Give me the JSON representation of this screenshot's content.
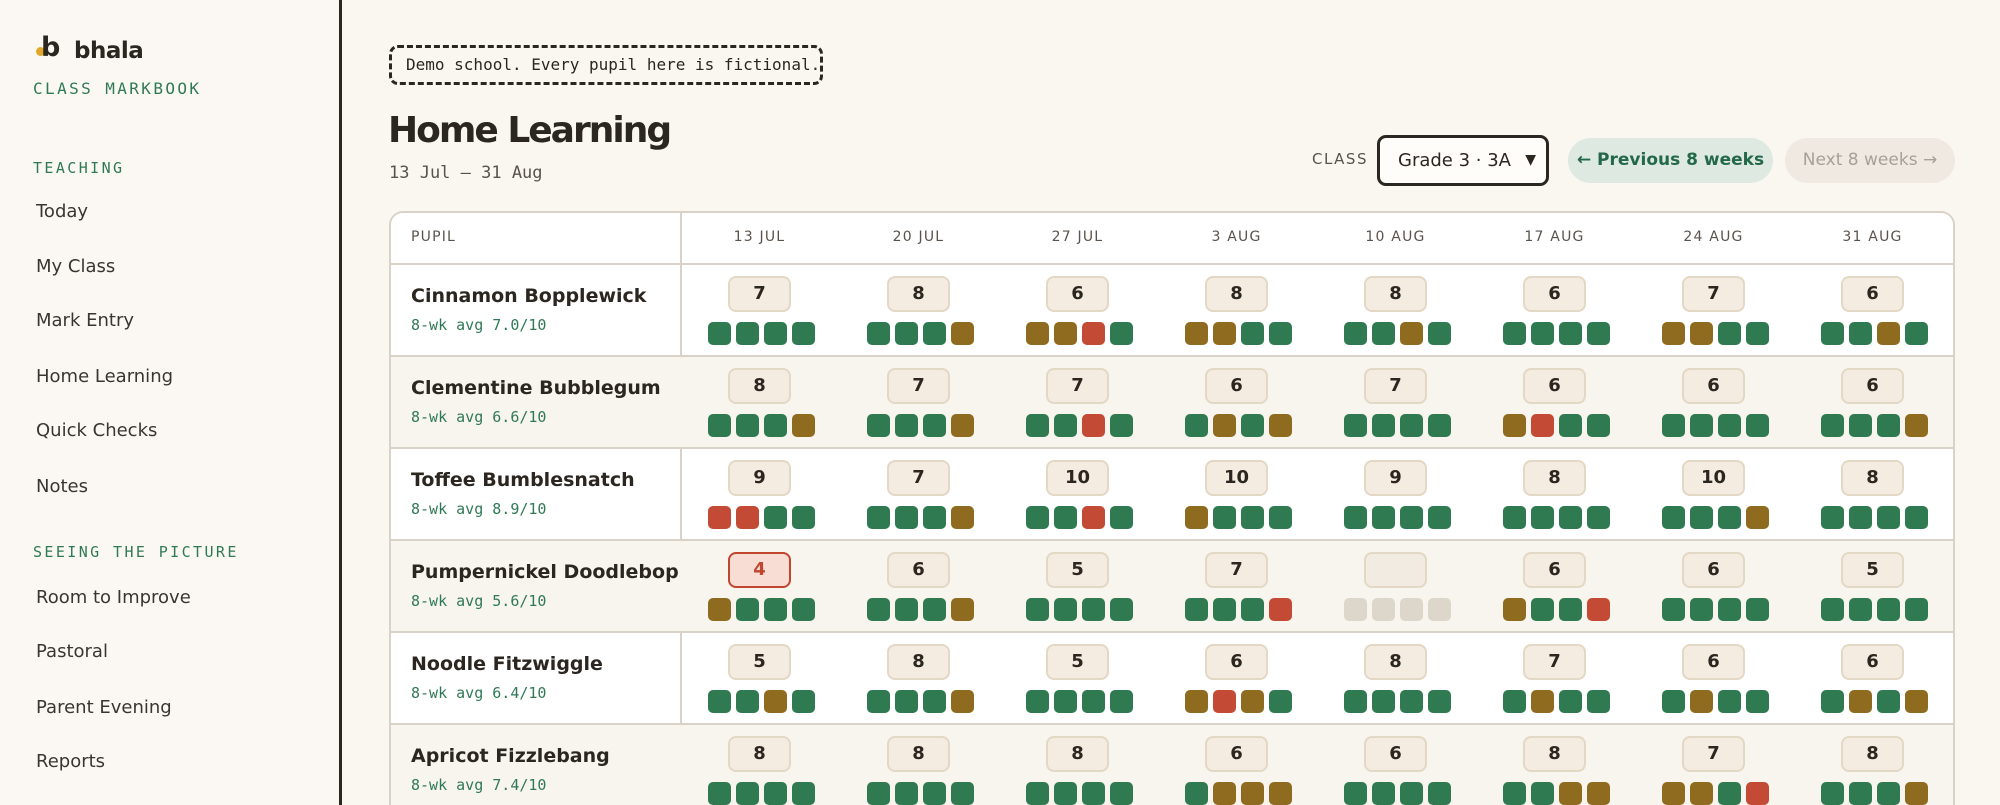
{
  "brand": {
    "name": "bhala",
    "logo_letter": "b",
    "subtitle": "CLASS MARKBOOK"
  },
  "nav": {
    "sections": [
      {
        "heading": "TEACHING",
        "items": [
          "Today",
          "My Class",
          "Mark Entry",
          "Home Learning",
          "Quick Checks",
          "Notes"
        ]
      },
      {
        "heading": "SEEING THE PICTURE",
        "items": [
          "Room to Improve",
          "Pastoral",
          "Parent Evening",
          "Reports"
        ]
      }
    ]
  },
  "page": {
    "demo_notice": "Demo school. Every pupil here is fictional.",
    "title": "Home Learning",
    "date_range": "13 Jul – 31 Aug"
  },
  "controls": {
    "class_label": "CLASS",
    "class_value": "Grade 3 · 3A",
    "prev_label": "← Previous 8 weeks",
    "next_label": "Next 8 weeks →"
  },
  "colors": {
    "g": "#2f7a51",
    "y": "#8f6b1f",
    "r": "#c34a34",
    "e": "#ddd6cb"
  },
  "table": {
    "pupil_header": "PUPIL",
    "weeks": [
      "13 JUL",
      "20 JUL",
      "27 JUL",
      "3 AUG",
      "10 AUG",
      "17 AUG",
      "24 AUG",
      "31 AUG"
    ],
    "rows": [
      {
        "name": "Cinnamon Bopplewick",
        "avg": "8-wk avg 7.0/10",
        "scores": [
          "7",
          "8",
          "6",
          "8",
          "8",
          "6",
          "7",
          "6"
        ],
        "dots": [
          "gggg",
          "gggy",
          "yyrg",
          "yygg",
          "ggyg",
          "gggg",
          "yygg",
          "ggyg"
        ]
      },
      {
        "name": "Clementine Bubblegum",
        "avg": "8-wk avg 6.6/10",
        "scores": [
          "8",
          "7",
          "7",
          "6",
          "7",
          "6",
          "6",
          "6"
        ],
        "dots": [
          "gggy",
          "gggy",
          "ggrg",
          "gygy",
          "gggg",
          "yrgg",
          "gggg",
          "gggy"
        ]
      },
      {
        "name": "Toffee Bumblesnatch",
        "avg": "8-wk avg 8.9/10",
        "scores": [
          "9",
          "7",
          "10",
          "10",
          "9",
          "8",
          "10",
          "8"
        ],
        "dots": [
          "rrgg",
          "gggy",
          "ggrg",
          "yggg",
          "gggg",
          "gggg",
          "gggy",
          "gggg"
        ]
      },
      {
        "name": "Pumpernickel Doodlebop",
        "avg": "8-wk avg 5.6/10",
        "scores": [
          "4",
          "6",
          "5",
          "7",
          "",
          "6",
          "6",
          "5"
        ],
        "dots": [
          "yggg",
          "gggy",
          "gggg",
          "gggr",
          "eeee",
          "yggr",
          "gggg",
          "gggg"
        ]
      },
      {
        "name": "Noodle Fitzwiggle",
        "avg": "8-wk avg 6.4/10",
        "scores": [
          "5",
          "8",
          "5",
          "6",
          "8",
          "7",
          "6",
          "6"
        ],
        "dots": [
          "ggyg",
          "gggy",
          "gggg",
          "yryg",
          "gggg",
          "gygg",
          "gygg",
          "gygy"
        ]
      },
      {
        "name": "Apricot Fizzlebang",
        "avg": "8-wk avg 7.4/10",
        "scores": [
          "8",
          "8",
          "8",
          "6",
          "6",
          "8",
          "7",
          "8"
        ],
        "dots": [
          "gggg",
          "gggg",
          "gggg",
          "gyyy",
          "gggg",
          "ggyy",
          "yygr",
          "gggy"
        ]
      }
    ]
  }
}
